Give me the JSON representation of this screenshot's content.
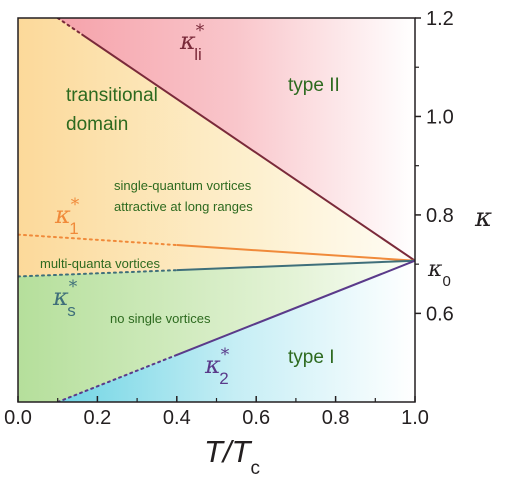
{
  "chart_data": {
    "type": "line",
    "title": "",
    "xlabel": {
      "main": "T/T",
      "sub": "c"
    },
    "ylabel": "κ",
    "xlim": [
      0.0,
      1.0
    ],
    "ylim": [
      0.42,
      1.2
    ],
    "x_ticks": [
      "0.0",
      "0.2",
      "0.4",
      "0.6",
      "0.8",
      "1.0"
    ],
    "y_ticks": [
      "0.6",
      "0.8",
      "1.0",
      "1.2"
    ],
    "y_tick_values": [
      0.6,
      0.8,
      1.0,
      1.2
    ],
    "kappa0": {
      "value": 0.707,
      "symbol": "κ",
      "sub": "0"
    },
    "series": [
      {
        "name": "κ*li",
        "color": "#7a2a3a",
        "points": [
          [
            0.1,
            1.2
          ],
          [
            1.0,
            0.707
          ]
        ],
        "dashed_until": 0.16
      },
      {
        "name": "κ*1",
        "color": "#f08a3a",
        "points": [
          [
            0.0,
            0.76
          ],
          [
            1.0,
            0.707
          ]
        ],
        "dashed_until": 0.4
      },
      {
        "name": "κ*s",
        "color": "#3f6f7a",
        "points": [
          [
            0.0,
            0.675
          ],
          [
            1.0,
            0.707
          ]
        ],
        "dashed_until": 0.4
      },
      {
        "name": "κ*2",
        "color": "#5a3a8a",
        "points": [
          [
            0.1,
            0.42
          ],
          [
            1.0,
            0.707
          ]
        ],
        "dashed_until": 0.4
      }
    ],
    "region_labels": {
      "transitional_1": "transitional",
      "transitional_2": "domain",
      "type2": "type II",
      "type1": "type I",
      "sq_1": "single-quantum vortices",
      "sq_2": "attractive at long ranges",
      "multi": "multi-quanta vortices",
      "nosingle": "no single vortices"
    },
    "curve_labels": [
      {
        "sym": "κ",
        "sup": "*",
        "sub": "li",
        "color": "#7a2a3a"
      },
      {
        "sym": "κ",
        "sup": "*",
        "sub": "1",
        "color": "#f08a3a"
      },
      {
        "sym": "κ",
        "sup": "*",
        "sub": "s",
        "color": "#3f6f7a"
      },
      {
        "sym": "κ",
        "sup": "*",
        "sub": "2",
        "color": "#5a3a8a"
      }
    ],
    "colors": {
      "type2": "#f4a5ab",
      "transitional": "#fde6a8",
      "green": "#bfe3a6",
      "type1": "#7fd8e6",
      "text_green": "#2d6a1f",
      "axis": "#231f20"
    }
  }
}
